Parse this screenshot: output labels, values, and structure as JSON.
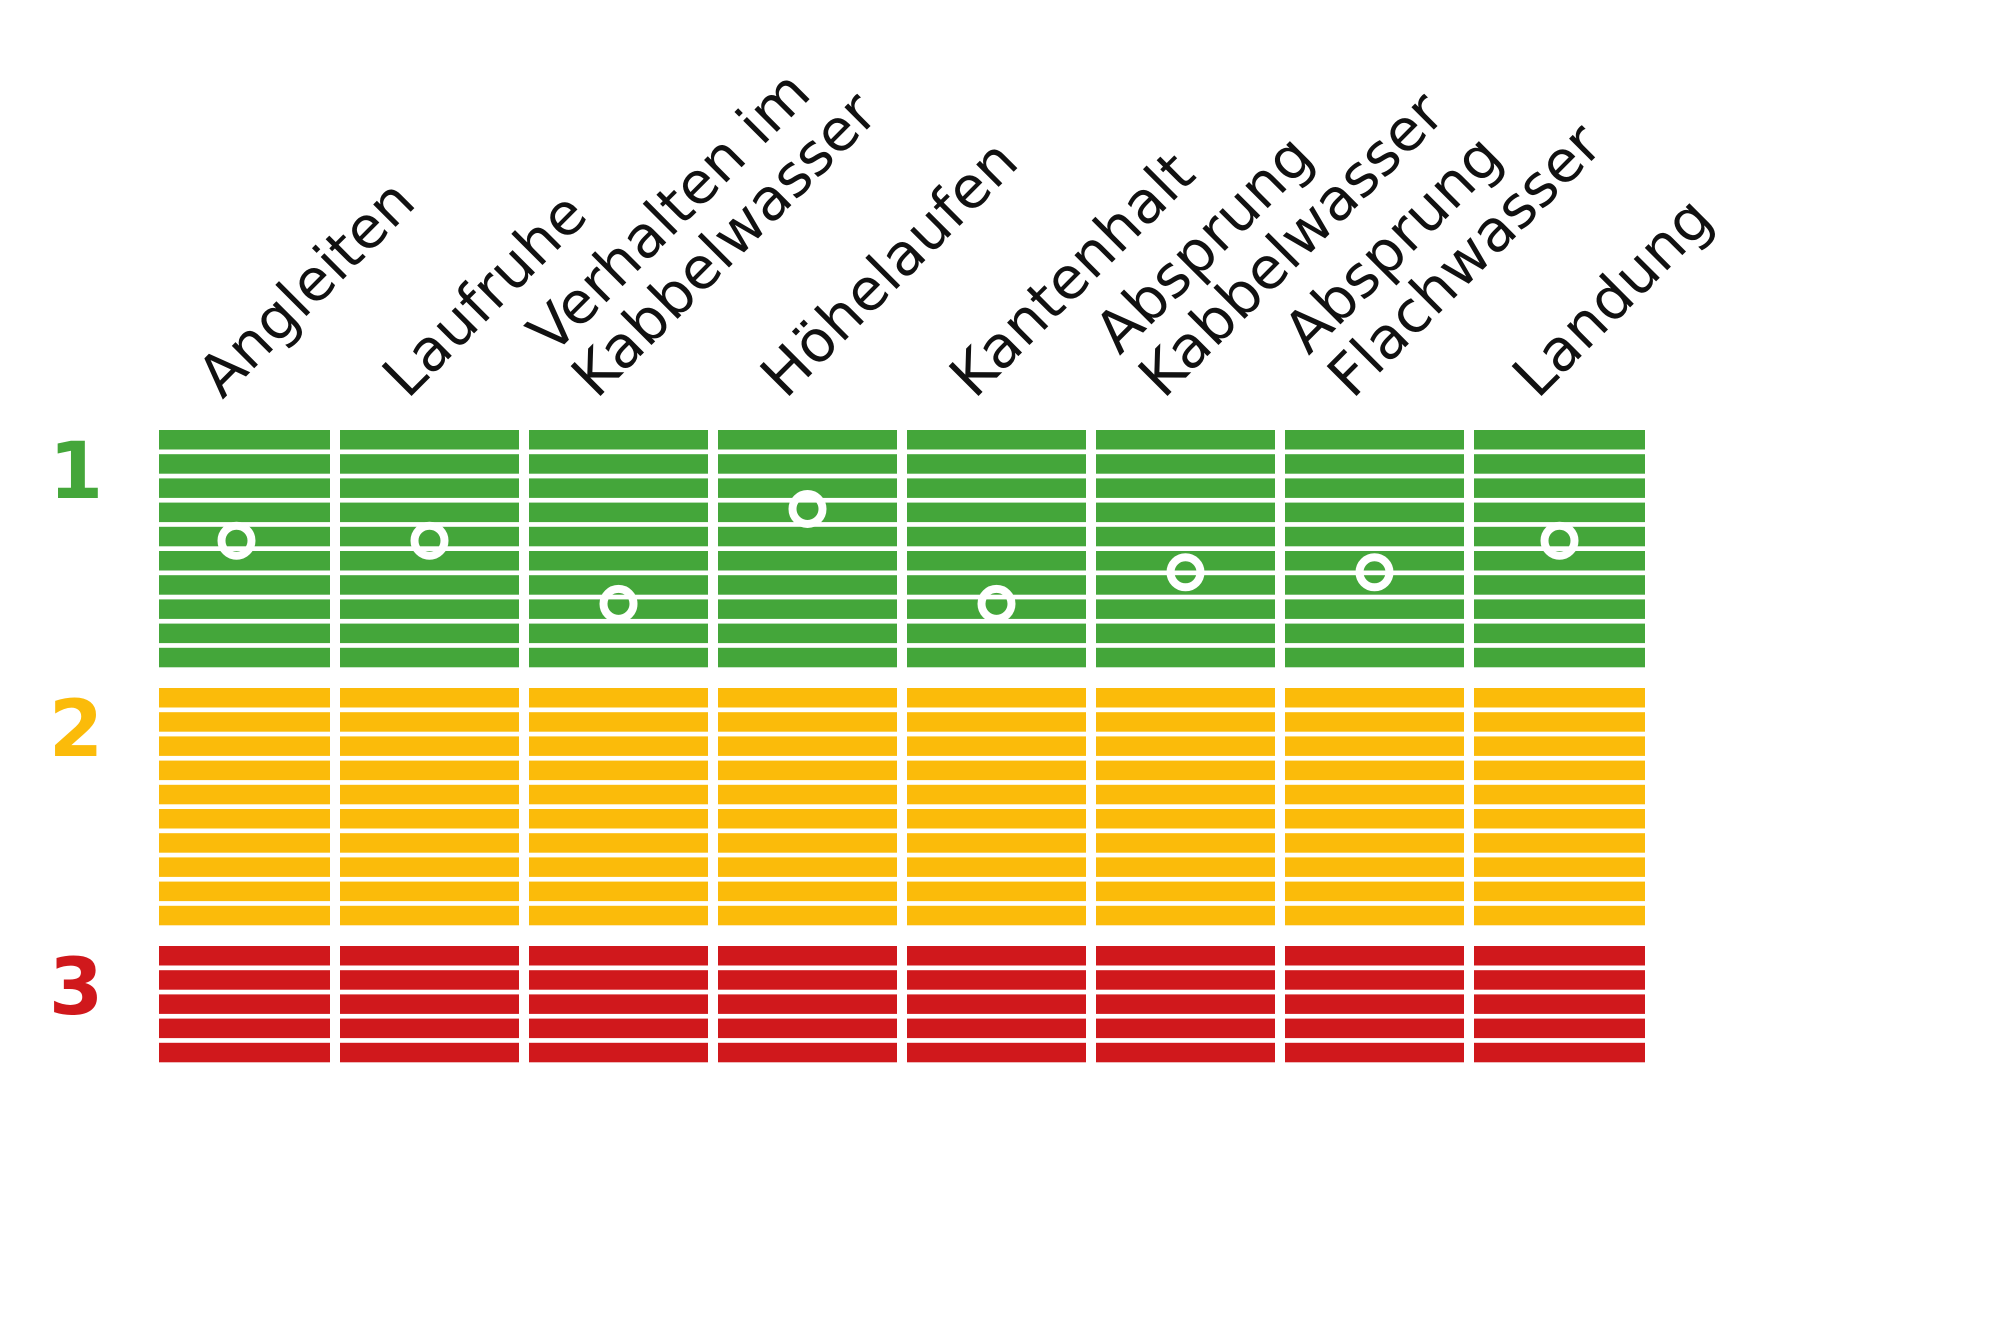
{
  "chart_data": {
    "type": "heatmap",
    "title": "",
    "categories": [
      [
        "Angleiten"
      ],
      [
        "Laufruhe"
      ],
      [
        "Verhalten im",
        "Kabbelwasser"
      ],
      [
        "Höhelaufen"
      ],
      [
        "Kantenhalt"
      ],
      [
        "Absprung",
        "Kabbelwasser"
      ],
      [
        "Absprung",
        "Flachwasser"
      ],
      [
        "Landung"
      ]
    ],
    "bands": [
      {
        "name": "1",
        "color": "#44a63a",
        "stripes": 10
      },
      {
        "name": "2",
        "color": "#fbbb0a",
        "stripes": 10
      },
      {
        "name": "3",
        "color": "#d0181c",
        "stripes": 5
      }
    ],
    "scale_min": 1,
    "scale_max": 3,
    "values": [
      1.35,
      1.35,
      1.55,
      1.25,
      1.55,
      1.45,
      1.45,
      1.35
    ],
    "marker": "white-ring-dot",
    "grid": false,
    "legend": "none"
  }
}
